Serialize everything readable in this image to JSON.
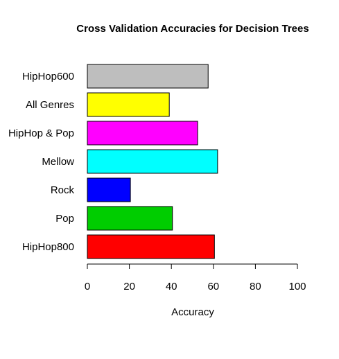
{
  "chart_data": {
    "type": "bar",
    "orientation": "horizontal",
    "title": "Cross Validation Accuracies for Decision Trees",
    "xlabel": "Accuracy",
    "ylabel": "",
    "xlim": [
      0,
      100
    ],
    "x_ticks": [
      0,
      20,
      40,
      60,
      80,
      100
    ],
    "categories": [
      "HipHop800",
      "Pop",
      "Rock",
      "Mellow",
      "HipHop & Pop",
      "All Genres",
      "HipHop600"
    ],
    "values": [
      60.5,
      40.5,
      20.5,
      62,
      52.5,
      39,
      57.5
    ],
    "colors": [
      "#ff0000",
      "#00cd00",
      "#0000ff",
      "#00ffff",
      "#ff00ff",
      "#ffff00",
      "#bebebe"
    ],
    "grid": false,
    "legend": "none"
  }
}
